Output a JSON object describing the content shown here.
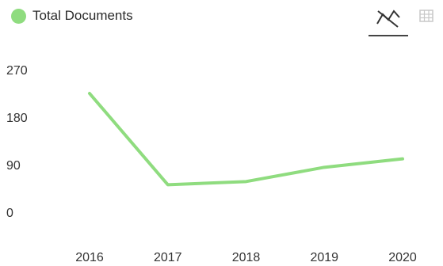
{
  "legend": {
    "label": "Total Documents",
    "color": "#8fdc7f"
  },
  "toolbar": {
    "chart_view_icon": "line-chart-icon",
    "table_view_icon": "table-grid-icon",
    "active_view": "chart"
  },
  "chart_data": {
    "type": "line",
    "title": "",
    "xlabel": "",
    "ylabel": "",
    "categories": [
      "2016",
      "2017",
      "2018",
      "2019",
      "2020"
    ],
    "series": [
      {
        "name": "Total Documents",
        "values": [
          225,
          52,
          58,
          85,
          101
        ],
        "color": "#8fdc7f"
      }
    ],
    "yticks": [
      0,
      90,
      180,
      270
    ],
    "ylim": [
      0,
      270
    ],
    "grid": false,
    "legend": "top-left"
  }
}
